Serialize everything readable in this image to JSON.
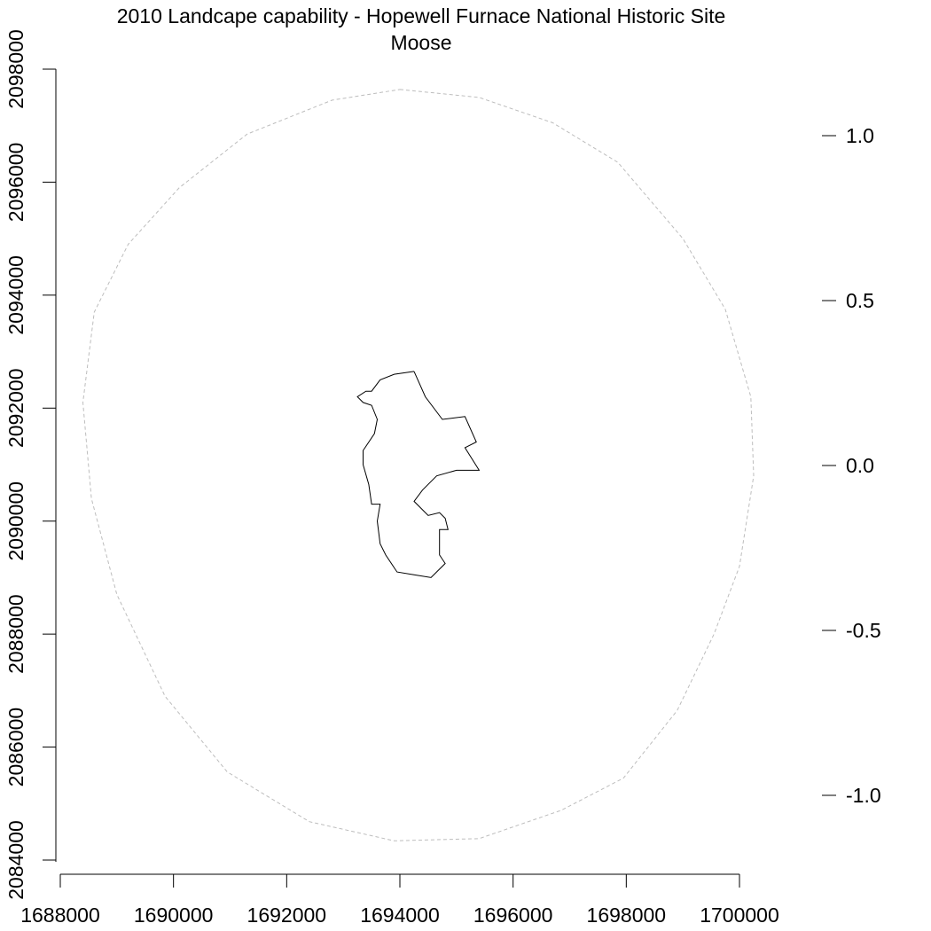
{
  "title": {
    "line1": "2010 Landcape capability - Hopewell Furnace National Historic Site",
    "line2": "Moose"
  },
  "chart_data": {
    "type": "map",
    "x_axis": {
      "ticks": [
        1688000,
        1690000,
        1692000,
        1694000,
        1696000,
        1698000,
        1700000
      ],
      "tick_labels": [
        "1688000",
        "1690000",
        "1692000",
        "1694000",
        "1696000",
        "1698000",
        "1700000"
      ],
      "range": [
        1688000,
        1700000
      ]
    },
    "y_axis": {
      "ticks": [
        2084000,
        2086000,
        2088000,
        2090000,
        2092000,
        2094000,
        2096000,
        2098000
      ],
      "tick_labels": [
        "2084000",
        "2086000",
        "2088000",
        "2090000",
        "2092000",
        "2094000",
        "2096000",
        "2098000"
      ],
      "range": [
        2084000,
        2098000
      ]
    },
    "legend_scale": {
      "ticks": [
        1.0,
        0.5,
        0.0,
        -0.5,
        -1.0
      ],
      "tick_labels": [
        "1.0",
        "0.5",
        "0.0",
        "-0.5",
        "-1.0"
      ]
    },
    "layers": [
      {
        "name": "buffer",
        "style": "dashed",
        "color": "#bdbdbd",
        "points": [
          [
            1694000,
            2097640
          ],
          [
            1695400,
            2097500
          ],
          [
            1696700,
            2097050
          ],
          [
            1697850,
            2096350
          ],
          [
            1699000,
            2095000
          ],
          [
            1699750,
            2093750
          ],
          [
            1700200,
            2092200
          ],
          [
            1700250,
            2090800
          ],
          [
            1700000,
            2089200
          ],
          [
            1699550,
            2088000
          ],
          [
            1698900,
            2086650
          ],
          [
            1697950,
            2085450
          ],
          [
            1696850,
            2084880
          ],
          [
            1695400,
            2084380
          ],
          [
            1693900,
            2084340
          ],
          [
            1692400,
            2084680
          ],
          [
            1690950,
            2085560
          ],
          [
            1689850,
            2086900
          ],
          [
            1689000,
            2088700
          ],
          [
            1688550,
            2090400
          ],
          [
            1688400,
            2092100
          ],
          [
            1688600,
            2093700
          ],
          [
            1689200,
            2094900
          ],
          [
            1690100,
            2095900
          ],
          [
            1691300,
            2096850
          ],
          [
            1692800,
            2097450
          ],
          [
            1694000,
            2097640
          ]
        ]
      },
      {
        "name": "park-boundary",
        "style": "solid",
        "color": "#000000",
        "points": [
          [
            1694250,
            2092650
          ],
          [
            1694450,
            2092200
          ],
          [
            1694750,
            2091800
          ],
          [
            1695150,
            2091850
          ],
          [
            1695350,
            2091400
          ],
          [
            1695150,
            2091300
          ],
          [
            1695400,
            2090900
          ],
          [
            1695000,
            2090900
          ],
          [
            1694650,
            2090800
          ],
          [
            1694400,
            2090550
          ],
          [
            1694250,
            2090350
          ],
          [
            1694500,
            2090100
          ],
          [
            1694700,
            2090150
          ],
          [
            1694800,
            2090050
          ],
          [
            1694850,
            2089850
          ],
          [
            1694700,
            2089850
          ],
          [
            1694700,
            2089400
          ],
          [
            1694800,
            2089250
          ],
          [
            1694550,
            2089000
          ],
          [
            1694250,
            2089050
          ],
          [
            1693950,
            2089100
          ],
          [
            1693750,
            2089400
          ],
          [
            1693650,
            2089600
          ],
          [
            1693600,
            2090000
          ],
          [
            1693650,
            2090300
          ],
          [
            1693500,
            2090300
          ],
          [
            1693450,
            2090650
          ],
          [
            1693350,
            2091000
          ],
          [
            1693350,
            2091250
          ],
          [
            1693550,
            2091550
          ],
          [
            1693600,
            2091800
          ],
          [
            1693500,
            2092050
          ],
          [
            1693350,
            2092100
          ],
          [
            1693250,
            2092200
          ],
          [
            1693400,
            2092300
          ],
          [
            1693500,
            2092300
          ],
          [
            1693650,
            2092500
          ],
          [
            1693900,
            2092600
          ],
          [
            1694250,
            2092650
          ]
        ]
      }
    ]
  }
}
